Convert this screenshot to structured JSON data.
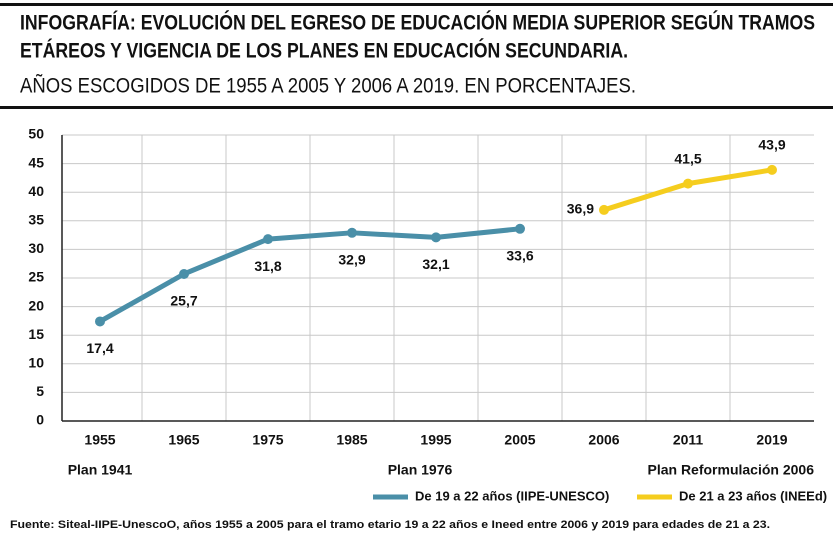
{
  "chart_data": {
    "type": "line",
    "title": [
      "INFOGRAFÍA: EVOLUCIÓN DEL EGRESO DE EDUCACIÓN MEDIA SUPERIOR SEGÚN TRAMOS",
      "ETÁREOS Y VIGENCIA DE LOS PLANES EN EDUCACIÓN SECUNDARIA."
    ],
    "subtitle": "AÑOS ESCOGIDOS DE 1955 A 2005 Y 2006 A 2019. EN PORCENTAJES.",
    "categories": [
      "1955",
      "1965",
      "1975",
      "1985",
      "1995",
      "2005",
      "2006",
      "2011",
      "2019"
    ],
    "series": [
      {
        "name": "De 19 a 22 años (IIPE-UNESCO)",
        "color": "#4a8fa8",
        "values": [
          17.4,
          25.7,
          31.8,
          32.9,
          32.1,
          33.6,
          null,
          null,
          null
        ],
        "value_labels": [
          "17,4",
          "25,7",
          "31,8",
          "32,9",
          "32,1",
          "33,6",
          null,
          null,
          null
        ]
      },
      {
        "name": "De 21 a 23 años (INEEd)",
        "color": "#f5cd1e",
        "values": [
          null,
          null,
          null,
          null,
          null,
          null,
          36.9,
          41.5,
          43.9
        ],
        "value_labels": [
          null,
          null,
          null,
          null,
          null,
          null,
          "36,9",
          "41,5",
          "43,9"
        ]
      }
    ],
    "annotations": [
      "Plan 1941",
      "Plan 1976",
      "Plan Reformulación 2006"
    ],
    "ylim": [
      0,
      50
    ],
    "yticks": [
      0,
      5,
      10,
      15,
      20,
      25,
      30,
      35,
      40,
      45,
      50
    ],
    "grid": true,
    "legend": "bottom",
    "source": "Fuente: Siteal-IIPE-UnescoO, años 1955 a 2005 para el tramo etario 19 a 22 años e Ineed entre 2006 y 2019 para edades de 21 a 23."
  }
}
